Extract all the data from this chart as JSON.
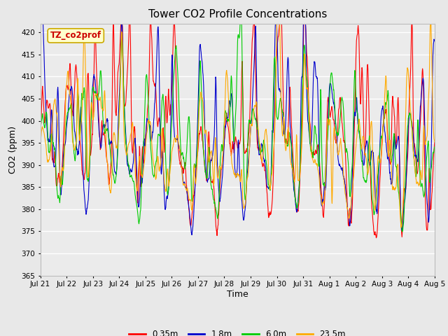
{
  "title": "Tower CO2 Profile Concentrations",
  "xlabel": "Time",
  "ylabel": "CO2 (ppm)",
  "ylim": [
    365,
    422
  ],
  "yticks": [
    365,
    370,
    375,
    380,
    385,
    390,
    395,
    400,
    405,
    410,
    415,
    420
  ],
  "series_colors": [
    "#ff0000",
    "#0000cc",
    "#00cc00",
    "#ffaa00"
  ],
  "series_labels": [
    "0.35m",
    "1.8m",
    "6.0m",
    "23.5m"
  ],
  "legend_label": "TZ_co2prof",
  "legend_bg": "#ffffcc",
  "legend_border": "#ccaa00",
  "bg_color": "#e8e8e8",
  "plot_bg": "#ebebeb",
  "grid_color": "#ffffff",
  "xtick_labels": [
    "Jul 21",
    "Jul 22",
    "Jul 23",
    "Jul 24",
    "Jul 25",
    "Jul 26",
    "Jul 27",
    "Jul 28",
    "Jul 29",
    "Jul 30",
    "Jul 31",
    "Aug 1",
    "Aug 2",
    "Aug 3",
    "Aug 4",
    "Aug 5"
  ],
  "n_points": 1440,
  "base_co2": 388,
  "line_width": 0.8
}
